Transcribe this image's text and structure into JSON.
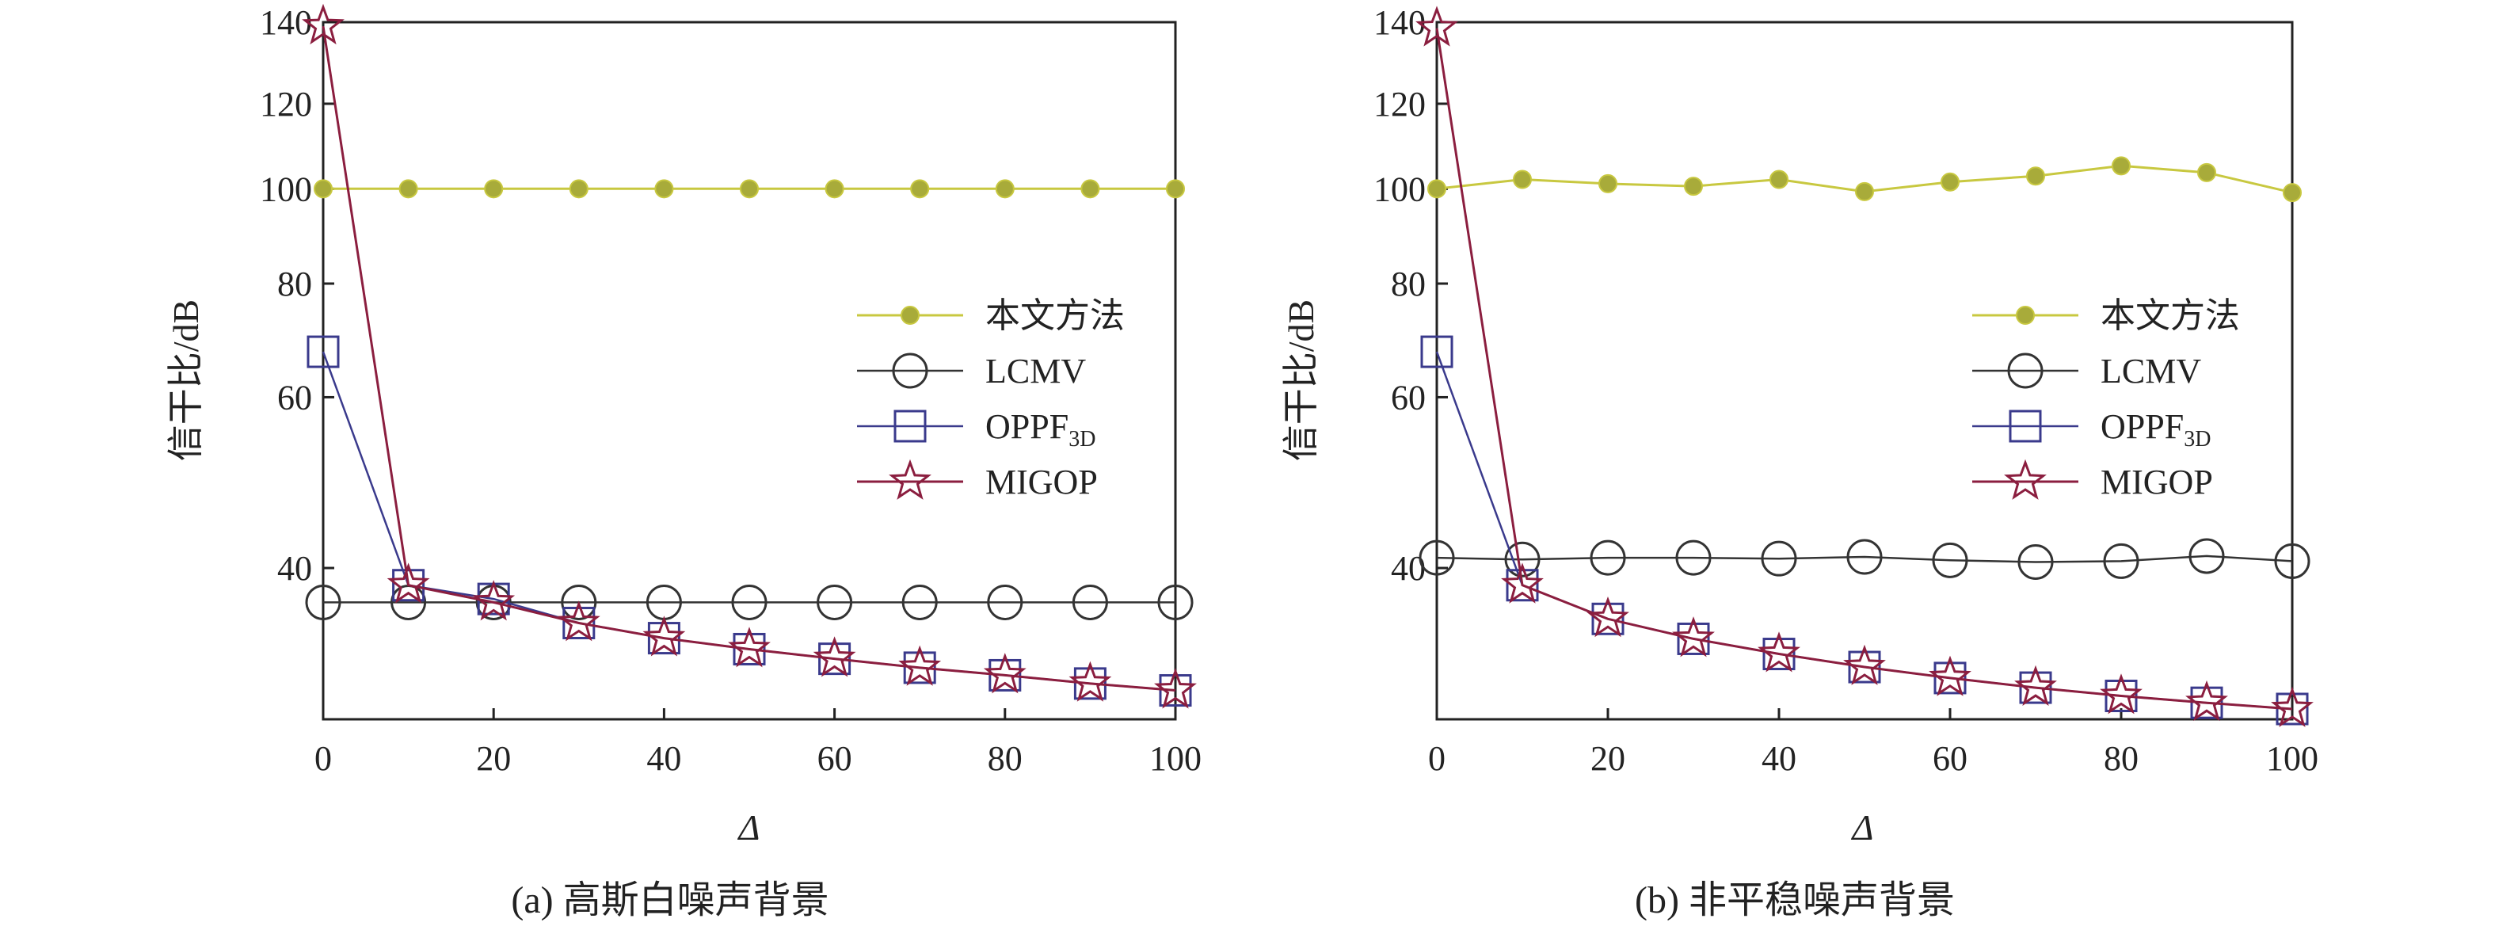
{
  "chart_data": [
    {
      "type": "line",
      "caption": "(a) 高斯白噪声背景",
      "xlabel": "Δ",
      "ylabel": "信干比/dB",
      "x": [
        0,
        10,
        20,
        30,
        40,
        50,
        60,
        70,
        80,
        90,
        100
      ],
      "xticks": [
        "0",
        "20",
        "40",
        "60",
        "80",
        "100"
      ],
      "yticks": [
        "40",
        "60",
        "80",
        "100",
        "120",
        "140"
      ],
      "series": [
        {
          "name": "本文方法",
          "values": [
            100,
            100,
            100,
            100,
            100,
            100,
            100,
            100,
            100,
            100,
            100
          ]
        },
        {
          "name": "LCMV",
          "values": [
            35,
            35,
            35,
            35,
            35,
            35,
            35,
            35,
            35,
            35,
            35
          ]
        },
        {
          "name": "OPPF3D",
          "values": [
            68,
            37.5,
            35.5,
            32,
            29.8,
            28.2,
            26.8,
            25.5,
            24.4,
            23.2,
            22.2
          ]
        },
        {
          "name": "MIGOP",
          "values": [
            139,
            37.5,
            35,
            32,
            29.8,
            28.2,
            26.8,
            25.5,
            24.4,
            23.2,
            22.2
          ]
        }
      ],
      "legend": [
        "本文方法",
        "LCMV",
        "OPPF",
        "MIGOP"
      ],
      "legend_subscript": "3D",
      "legend_position": "right"
    },
    {
      "type": "line",
      "caption": "(b) 非平稳噪声背景",
      "xlabel": "Δ",
      "ylabel": "信干比/dB",
      "x": [
        0,
        10,
        20,
        30,
        40,
        50,
        60,
        70,
        80,
        90,
        100
      ],
      "xticks": [
        "0",
        "20",
        "40",
        "60",
        "80",
        "100"
      ],
      "yticks": [
        "40",
        "60",
        "80",
        "100",
        "120",
        "140"
      ],
      "series": [
        {
          "name": "本文方法",
          "values": [
            100,
            102.2,
            101.2,
            100.6,
            102.2,
            99.4,
            101.6,
            103,
            105.4,
            103.8,
            99.2
          ]
        },
        {
          "name": "LCMV",
          "values": [
            41.2,
            41,
            41.2,
            41.2,
            41.1,
            41.3,
            40.9,
            40.7,
            40.8,
            41.4,
            40.8
          ]
        },
        {
          "name": "OPPF3D",
          "values": [
            68,
            37.5,
            32.6,
            29.7,
            27.5,
            25.6,
            24,
            22.6,
            21.4,
            20.4,
            19.5
          ]
        },
        {
          "name": "MIGOP",
          "values": [
            138.5,
            37.5,
            32.6,
            29.7,
            27.5,
            25.6,
            24,
            22.6,
            21.4,
            20.4,
            19.5
          ]
        }
      ],
      "legend": [
        "本文方法",
        "LCMV",
        "OPPF",
        "MIGOP"
      ],
      "legend_subscript": "3D",
      "legend_position": "right"
    }
  ],
  "colors": {
    "proposed": "#c8c840",
    "proposed_fill": "#a8ab3a",
    "lcmv": "#333333",
    "oppf": "#3a3a8c",
    "migop": "#8b1e3f"
  },
  "icons": {
    "proposed": "filled-circle",
    "lcmv": "open-circle",
    "oppf": "open-square",
    "migop": "open-star"
  }
}
